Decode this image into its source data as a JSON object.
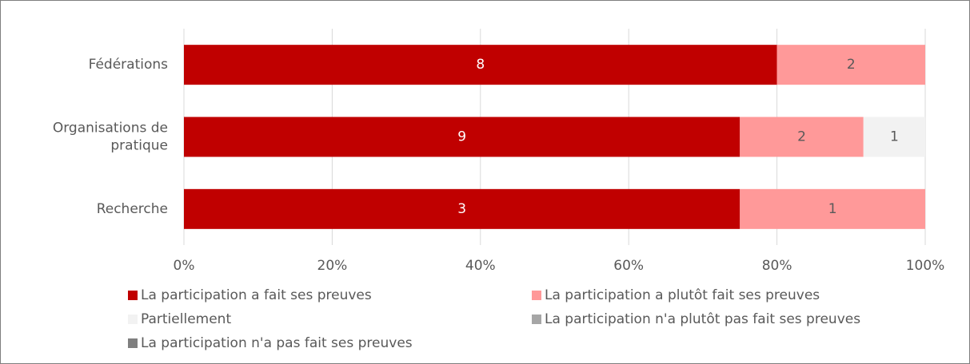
{
  "chart_data": {
    "type": "bar",
    "orientation": "horizontal",
    "stacking": "percent",
    "categories": [
      "Fédérations",
      "Organisations de pratique",
      "Recherche"
    ],
    "series": [
      {
        "name": "La participation a fait ses preuves",
        "color": "#c00000",
        "label_color": "#ffffff",
        "values": [
          8,
          9,
          3
        ]
      },
      {
        "name": "La participation a plutôt fait ses preuves",
        "color": "#ff9999",
        "label_color": "#595959",
        "values": [
          2,
          2,
          1
        ]
      },
      {
        "name": "Partiellement",
        "color": "#f2f2f2",
        "label_color": "#595959",
        "values": [
          null,
          1,
          null
        ]
      },
      {
        "name": "La participation n'a plutôt pas fait ses preuves",
        "color": "#a6a6a6",
        "label_color": "#595959",
        "values": [
          null,
          null,
          null
        ]
      },
      {
        "name": "La participation n'a pas fait ses preuves",
        "color": "#7f7f7f",
        "label_color": "#595959",
        "values": [
          null,
          null,
          null
        ]
      }
    ],
    "xlim": [
      0,
      100
    ],
    "xticks": [
      {
        "value": 0,
        "label": "0%"
      },
      {
        "value": 20,
        "label": "20%"
      },
      {
        "value": 40,
        "label": "40%"
      },
      {
        "value": 60,
        "label": "60%"
      },
      {
        "value": 80,
        "label": "80%"
      },
      {
        "value": 100,
        "label": "100%"
      }
    ],
    "grid": true,
    "legend": "bottom"
  }
}
